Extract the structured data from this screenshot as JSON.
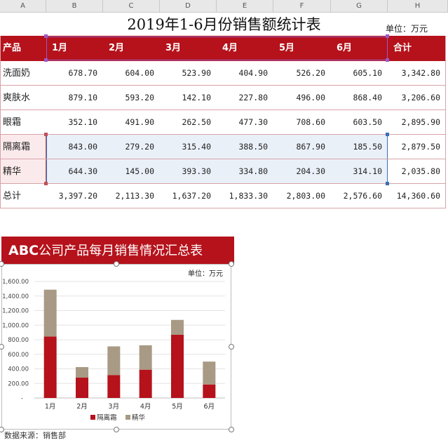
{
  "columns": [
    "A",
    "B",
    "C",
    "D",
    "E",
    "F",
    "G",
    "H"
  ],
  "title": "2019年1-6月份销售额统计表",
  "unit_label": "单位：万元",
  "table": {
    "header": [
      "产品",
      "1月",
      "2月",
      "3月",
      "4月",
      "5月",
      "6月",
      "合计"
    ],
    "rows": [
      {
        "name": "洗面奶",
        "values": [
          "678.70",
          "604.00",
          "523.90",
          "404.90",
          "526.20",
          "605.10"
        ],
        "total": "3,342.80"
      },
      {
        "name": "爽肤水",
        "values": [
          "879.10",
          "593.20",
          "142.10",
          "227.80",
          "496.00",
          "868.40"
        ],
        "total": "3,206.60"
      },
      {
        "name": "眼霜",
        "values": [
          "352.10",
          "491.90",
          "262.50",
          "477.30",
          "708.60",
          "603.50"
        ],
        "total": "2,895.90"
      },
      {
        "name": "隔离霜",
        "values": [
          "843.00",
          "279.20",
          "315.40",
          "388.50",
          "867.90",
          "185.50"
        ],
        "total": "2,879.50"
      },
      {
        "name": "精华",
        "values": [
          "644.30",
          "145.00",
          "393.30",
          "334.80",
          "204.30",
          "314.10"
        ],
        "total": "2,035.80"
      },
      {
        "name": "总计",
        "values": [
          "3,397.20",
          "2,113.30",
          "1,637.20",
          "1,833.30",
          "2,803.00",
          "2,576.60"
        ],
        "total": "14,360.60"
      }
    ]
  },
  "chart_banner": {
    "brand": "ABC",
    "text": "公司产品每月销售情况汇总表"
  },
  "chart_unit": "单位：万元",
  "source": "数据来源：销售部",
  "colors": {
    "accent": "#b5121b",
    "series2": "#a89a84",
    "selection_blue": "#3b6fb5",
    "selection_purple": "#9b59c6"
  },
  "chart_data": {
    "type": "bar",
    "stacked": true,
    "categories": [
      "1月",
      "2月",
      "3月",
      "4月",
      "5月",
      "6月"
    ],
    "series": [
      {
        "name": "隔离霜",
        "values": [
          843.0,
          279.2,
          315.4,
          388.5,
          867.9,
          185.5
        ],
        "color": "#b5121b"
      },
      {
        "name": "精华",
        "values": [
          644.3,
          145.0,
          393.3,
          334.8,
          204.3,
          314.1
        ],
        "color": "#a89a84"
      }
    ],
    "yticks": [
      "-",
      "200.00",
      "400.00",
      "600.00",
      "800.00",
      "1,000.00",
      "1,200.00",
      "1,400.00",
      "1,600.00"
    ],
    "ylim": [
      0,
      1600
    ],
    "grid": true,
    "legend": "bottom"
  }
}
